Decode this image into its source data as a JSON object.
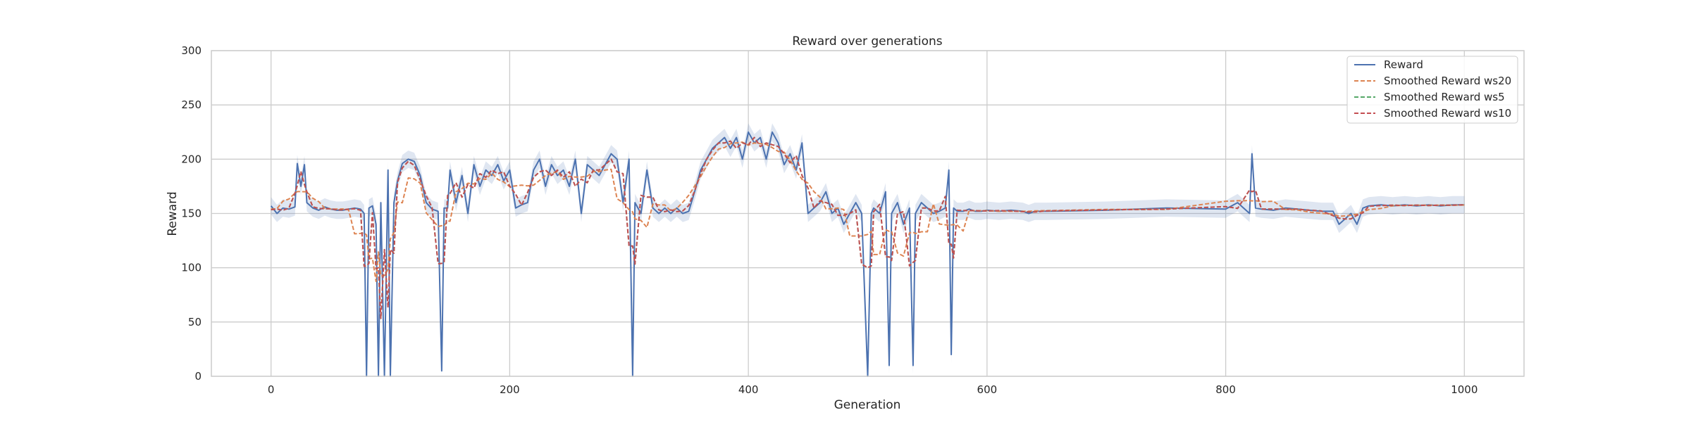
{
  "chart_data": {
    "type": "line",
    "title": "Reward over generations",
    "xlabel": "Generation",
    "ylabel": "Reward",
    "xlim": [
      -50,
      1050
    ],
    "ylim": [
      0,
      300
    ],
    "xticks": [
      0,
      200,
      400,
      600,
      800,
      1000
    ],
    "yticks": [
      0,
      50,
      100,
      150,
      200,
      250,
      300
    ],
    "grid": true,
    "legend_position": "top-right",
    "series": [
      {
        "name": "Reward",
        "color": "#4c72b0",
        "style": "solid",
        "window": 1
      },
      {
        "name": "Smoothed Reward ws20",
        "color": "#dd8452",
        "style": "dashed",
        "window": 20
      },
      {
        "name": "Smoothed Reward ws5",
        "color": "#55a868",
        "style": "dashed",
        "window": 5
      },
      {
        "name": "Smoothed Reward ws10",
        "color": "#c44e52",
        "style": "dashed",
        "window": 10
      }
    ],
    "x": [
      0,
      5,
      10,
      15,
      20,
      22,
      25,
      28,
      30,
      35,
      40,
      45,
      50,
      55,
      60,
      65,
      70,
      75,
      78,
      80,
      82,
      85,
      88,
      90,
      92,
      95,
      98,
      100,
      103,
      106,
      110,
      115,
      120,
      125,
      130,
      135,
      140,
      143,
      145,
      148,
      150,
      155,
      160,
      165,
      170,
      175,
      180,
      185,
      190,
      195,
      200,
      205,
      210,
      215,
      220,
      225,
      230,
      235,
      240,
      245,
      250,
      255,
      260,
      265,
      270,
      275,
      280,
      285,
      290,
      295,
      300,
      303,
      305,
      310,
      315,
      320,
      325,
      330,
      335,
      340,
      345,
      350,
      355,
      360,
      365,
      370,
      375,
      380,
      385,
      390,
      395,
      400,
      405,
      410,
      415,
      420,
      425,
      430,
      435,
      440,
      445,
      450,
      455,
      460,
      465,
      470,
      475,
      480,
      485,
      490,
      495,
      500,
      503,
      505,
      510,
      515,
      518,
      520,
      525,
      530,
      535,
      538,
      540,
      545,
      550,
      555,
      560,
      565,
      568,
      570,
      572,
      575,
      580,
      585,
      590,
      595,
      600,
      610,
      620,
      630,
      635,
      640,
      650,
      700,
      750,
      800,
      810,
      820,
      822,
      825,
      830,
      840,
      850,
      860,
      870,
      880,
      890,
      895,
      900,
      905,
      910,
      915,
      920,
      930,
      940,
      950,
      960,
      970,
      980,
      990,
      1000
    ],
    "values": [
      157,
      150,
      155,
      154,
      156,
      196,
      175,
      195,
      160,
      155,
      153,
      156,
      154,
      153,
      153,
      154,
      155,
      154,
      150,
      0,
      155,
      157,
      140,
      0,
      160,
      0,
      190,
      0,
      160,
      180,
      196,
      200,
      198,
      185,
      160,
      154,
      152,
      5,
      155,
      155,
      190,
      160,
      185,
      150,
      195,
      175,
      190,
      185,
      195,
      180,
      190,
      155,
      158,
      160,
      190,
      200,
      175,
      195,
      185,
      190,
      175,
      200,
      150,
      195,
      190,
      185,
      195,
      205,
      200,
      160,
      200,
      0,
      160,
      150,
      190,
      155,
      150,
      155,
      150,
      155,
      150,
      152,
      170,
      190,
      200,
      210,
      215,
      220,
      210,
      220,
      200,
      225,
      215,
      220,
      200,
      225,
      215,
      195,
      205,
      190,
      215,
      150,
      155,
      160,
      170,
      150,
      155,
      140,
      150,
      160,
      150,
      0,
      150,
      155,
      150,
      170,
      10,
      150,
      160,
      140,
      155,
      10,
      150,
      160,
      155,
      150,
      152,
      155,
      190,
      20,
      155,
      152,
      152,
      154,
      152,
      152,
      153,
      152,
      153,
      152,
      150,
      152,
      152,
      153,
      155,
      154,
      160,
      150,
      205,
      155,
      154,
      153,
      155,
      154,
      153,
      152,
      152,
      140,
      145,
      150,
      140,
      155,
      157,
      158,
      157,
      158,
      157,
      158,
      157,
      158,
      158
    ]
  }
}
